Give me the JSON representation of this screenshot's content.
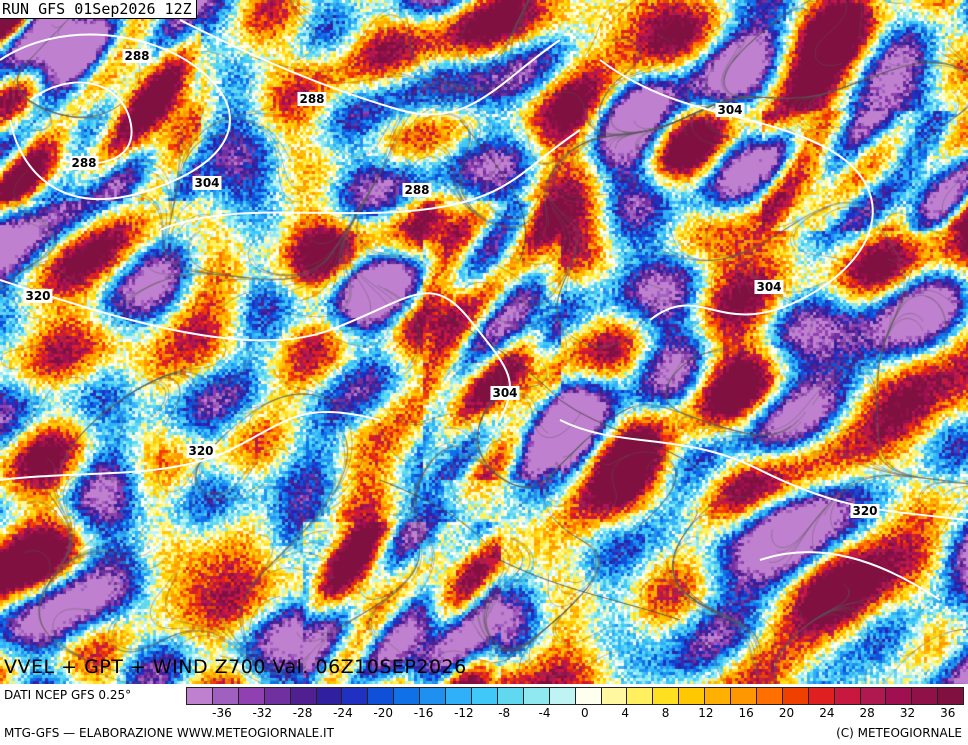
{
  "header": {
    "run_label": "RUN GFS 01Sep2026 12Z"
  },
  "map": {
    "title": "VVEL + GPT + WIND Z700 Val. 06Z10SEP2026",
    "contour_labels": [
      {
        "text": "288"
      },
      {
        "text": "288"
      },
      {
        "text": "288"
      },
      {
        "text": "288"
      },
      {
        "text": "304"
      },
      {
        "text": "304"
      },
      {
        "text": "304"
      },
      {
        "text": "304"
      },
      {
        "text": "320"
      },
      {
        "text": "320"
      },
      {
        "text": "320"
      }
    ]
  },
  "footer": {
    "source": "DATI NCEP GFS 0.25°",
    "credit": "MTG-GFS — ELABORAZIONE WWW.METEOGIORNALE.IT",
    "copyright": "(C) METEOGIORNALE"
  },
  "legend": {
    "colors": [
      "#c080d0",
      "#a060c0",
      "#9040b0",
      "#7030a0",
      "#502090",
      "#3020a0",
      "#2030c0",
      "#1050d8",
      "#1070e8",
      "#2090f0",
      "#30b0f8",
      "#40c8f8",
      "#60d8f0",
      "#90e8f0",
      "#c0f4f4",
      "#fffff0",
      "#fff8a0",
      "#fff060",
      "#ffe020",
      "#ffc800",
      "#ffb000",
      "#ff9800",
      "#ff7000",
      "#f04000",
      "#e02020",
      "#c81840",
      "#b01850",
      "#a01050",
      "#901048",
      "#801040"
    ],
    "ticks": [
      "-36",
      "-32",
      "-28",
      "-24",
      "-20",
      "-16",
      "-12",
      "-8",
      "-4",
      "0",
      "4",
      "8",
      "12",
      "16",
      "20",
      "24",
      "28",
      "32",
      "36"
    ]
  }
}
